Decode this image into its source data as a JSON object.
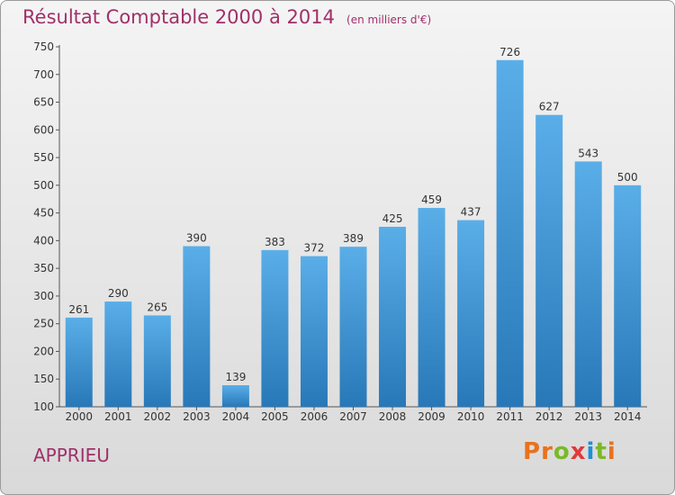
{
  "header": {
    "title": "Résultat Comptable 2000 à 2014",
    "subtitle": "(en milliers d'€)"
  },
  "footer": {
    "commune": "APPRIEU",
    "logo_letters": [
      "P",
      "r",
      "o",
      "x",
      "i",
      "t",
      "i"
    ],
    "logo_colors": [
      "#e8721c",
      "#e8721c",
      "#7ab929",
      "#e03a3a",
      "#1e8fd6",
      "#7ab929",
      "#e8721c"
    ]
  },
  "colors": {
    "bar_top": "#5aaee8",
    "bar_bottom": "#2878b8",
    "text_accent": "#a0306a"
  },
  "chart_data": {
    "type": "bar",
    "title": "Résultat Comptable 2000 à 2014",
    "categories": [
      "2000",
      "2001",
      "2002",
      "2003",
      "2004",
      "2005",
      "2006",
      "2007",
      "2008",
      "2009",
      "2010",
      "2011",
      "2012",
      "2013",
      "2014"
    ],
    "values": [
      261,
      290,
      265,
      390,
      139,
      383,
      372,
      389,
      425,
      459,
      437,
      726,
      627,
      543,
      500
    ],
    "ylim": [
      100,
      750
    ],
    "yticks": [
      100,
      150,
      200,
      250,
      300,
      350,
      400,
      450,
      500,
      550,
      600,
      650,
      700,
      750
    ],
    "grid": false,
    "legend": "none"
  }
}
